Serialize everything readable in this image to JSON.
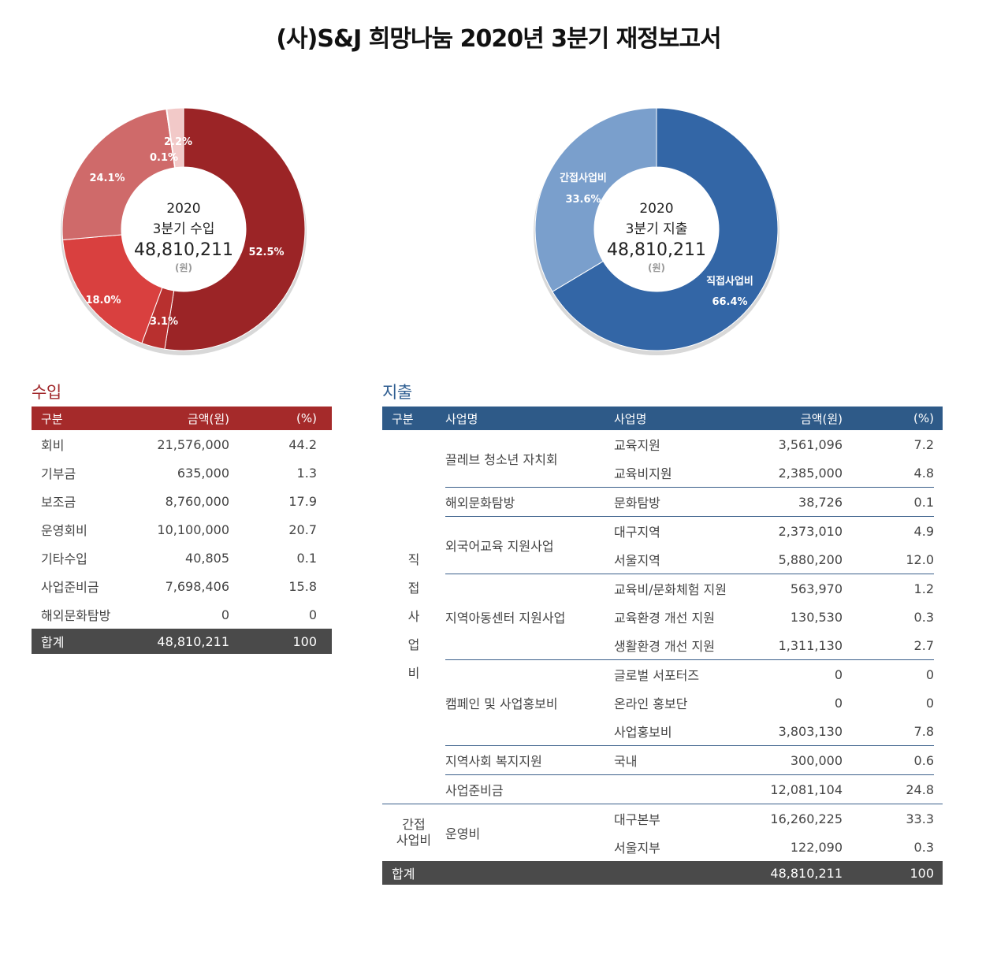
{
  "title": "(사)S&J 희망나눔 2020년 3분기 재정보고서",
  "chart_data": [
    {
      "type": "pie",
      "donut": true,
      "center_lines": [
        "2020",
        "3분기 수입",
        "48,810,211",
        "(원)"
      ],
      "values": [
        52.5,
        3.1,
        18.0,
        24.1,
        0.1,
        2.2
      ],
      "labels": [
        "52.5%",
        "3.1%",
        "18.0%",
        "24.1%",
        "0.1%",
        "2.2%"
      ],
      "colors": [
        "#9b2426",
        "#b8302f",
        "#d9403f",
        "#cf6a6a",
        "#e7a4a2",
        "#f2c9c8"
      ]
    },
    {
      "type": "pie",
      "donut": true,
      "center_lines": [
        "2020",
        "3분기 지출",
        "48,810,211",
        "(원)"
      ],
      "values": [
        66.4,
        33.6
      ],
      "labels": [
        "직접사업비 66.4%",
        "간접사업비 33.6%"
      ],
      "names": [
        "직접사업비",
        "간접사업비"
      ],
      "pct": [
        "66.4%",
        "33.6%"
      ],
      "colors": [
        "#3366a6",
        "#7a9fcc"
      ]
    }
  ],
  "income": {
    "heading": "수입",
    "headers": [
      "구분",
      "금액(원)",
      "(%)"
    ],
    "rows": [
      [
        "회비",
        "21,576,000",
        "44.2"
      ],
      [
        "기부금",
        "635,000",
        "1.3"
      ],
      [
        "보조금",
        "8,760,000",
        "17.9"
      ],
      [
        "운영회비",
        "10,100,000",
        "20.7"
      ],
      [
        "기타수입",
        "40,805",
        "0.1"
      ],
      [
        "사업준비금",
        "7,698,406",
        "15.8"
      ],
      [
        "해외문화탐방",
        "0",
        "0"
      ]
    ],
    "total": [
      "합계",
      "48,810,211",
      "100"
    ]
  },
  "expense": {
    "heading": "지출",
    "headers": [
      "구분",
      "사업명",
      "사업명",
      "금액(원)",
      "(%)"
    ],
    "direct_label": [
      "직",
      "접",
      "사",
      "업",
      "비"
    ],
    "indirect_label": [
      "간접",
      "사업비"
    ],
    "groups": [
      {
        "name": "끌레브 청소년 자치회",
        "items": [
          [
            "교육지원",
            "3,561,096",
            "7.2"
          ],
          [
            "교육비지원",
            "2,385,000",
            "4.8"
          ]
        ]
      },
      {
        "name": "해외문화탐방",
        "items": [
          [
            "문화탐방",
            "38,726",
            "0.1"
          ]
        ]
      },
      {
        "name": "외국어교육 지원사업",
        "items": [
          [
            "대구지역",
            "2,373,010",
            "4.9"
          ],
          [
            "서울지역",
            "5,880,200",
            "12.0"
          ]
        ]
      },
      {
        "name": "지역아동센터 지원사업",
        "items": [
          [
            "교육비/문화체험 지원",
            "563,970",
            "1.2"
          ],
          [
            "교육환경 개선 지원",
            "130,530",
            "0.3"
          ],
          [
            "생활환경 개선 지원",
            "1,311,130",
            "2.7"
          ]
        ]
      },
      {
        "name": "캠페인 및 사업홍보비",
        "items": [
          [
            "글로벌 서포터즈",
            "0",
            "0"
          ],
          [
            "온라인 홍보단",
            "0",
            "0"
          ],
          [
            "사업홍보비",
            "3,803,130",
            "7.8"
          ]
        ]
      },
      {
        "name": "지역사회 복지지원",
        "items": [
          [
            "국내",
            "300,000",
            "0.6"
          ]
        ]
      },
      {
        "name": "사업준비금",
        "items": [
          [
            "",
            "12,081,104",
            "24.8"
          ]
        ]
      }
    ],
    "indirect": {
      "name": "운영비",
      "items": [
        [
          "대구본부",
          "16,260,225",
          "33.3"
        ],
        [
          "서울지부",
          "122,090",
          "0.3"
        ]
      ]
    },
    "total": [
      "합계",
      "48,810,211",
      "100"
    ]
  }
}
